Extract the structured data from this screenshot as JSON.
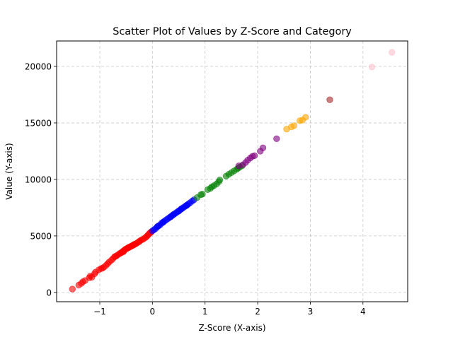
{
  "chart_data": {
    "type": "scatter",
    "title": "Scatter Plot of Values by Z-Score and Category",
    "xlabel": "Z-Score (X-axis)",
    "ylabel": "Value (Y-axis)",
    "xlim": [
      -1.82,
      4.85
    ],
    "ylim": [
      -820,
      22250
    ],
    "xticks": [
      -1,
      0,
      1,
      2,
      3,
      4
    ],
    "xtick_labels": [
      "−1",
      "0",
      "1",
      "2",
      "3",
      "4"
    ],
    "yticks": [
      0,
      5000,
      10000,
      15000,
      20000
    ],
    "ytick_labels": [
      "0",
      "5000",
      "10000",
      "15000",
      "20000"
    ],
    "grid": true,
    "legend": "none",
    "series": [
      {
        "color": "#ff0000",
        "opacity": 0.6,
        "points": [
          [
            -1.52,
            300
          ],
          [
            -1.4,
            650
          ],
          [
            -1.35,
            800
          ],
          [
            -1.32,
            950
          ],
          [
            -1.28,
            1050
          ],
          [
            -1.2,
            1300
          ],
          [
            -1.18,
            1450
          ],
          [
            -1.15,
            1350
          ],
          [
            -1.08,
            1800
          ],
          [
            -1.02,
            2000
          ],
          [
            -0.98,
            2100
          ],
          [
            -0.95,
            2150
          ],
          [
            -0.92,
            2250
          ],
          [
            -0.85,
            2550
          ],
          [
            -0.82,
            2700
          ],
          [
            -0.78,
            2850
          ],
          [
            -0.75,
            3000
          ],
          [
            -0.72,
            3150
          ],
          [
            -0.68,
            3250
          ],
          [
            -0.65,
            3350
          ],
          [
            -0.62,
            3450
          ],
          [
            -0.58,
            3550
          ],
          [
            -0.56,
            3650
          ],
          [
            -0.54,
            3700
          ],
          [
            -0.52,
            3800
          ],
          [
            -0.5,
            3850
          ],
          [
            -0.48,
            3900
          ],
          [
            -0.46,
            3950
          ],
          [
            -0.44,
            4000
          ],
          [
            -0.42,
            4050
          ],
          [
            -0.4,
            4100
          ],
          [
            -0.38,
            4150
          ],
          [
            -0.36,
            4200
          ],
          [
            -0.34,
            4250
          ],
          [
            -0.32,
            4300
          ],
          [
            -0.3,
            4350
          ],
          [
            -0.27,
            4450
          ],
          [
            -0.24,
            4550
          ],
          [
            -0.21,
            4650
          ],
          [
            -0.18,
            4700
          ],
          [
            -0.15,
            4800
          ],
          [
            -0.12,
            4900
          ],
          [
            -0.1,
            5000
          ],
          [
            -0.08,
            5100
          ],
          [
            -0.06,
            5200
          ],
          [
            -0.04,
            5300
          ],
          [
            -0.02,
            5350
          ],
          [
            -0.55,
            3600
          ],
          [
            -0.45,
            4000
          ],
          [
            -0.35,
            4250
          ],
          [
            -0.25,
            4500
          ],
          [
            -0.7,
            3200
          ],
          [
            -0.6,
            3500
          ],
          [
            -1.1,
            1650
          ],
          [
            -0.88,
            2400
          ]
        ]
      },
      {
        "color": "#0000ff",
        "opacity": 0.6,
        "points": [
          [
            0.0,
            5450
          ],
          [
            0.03,
            5550
          ],
          [
            0.06,
            5650
          ],
          [
            0.09,
            5800
          ],
          [
            0.12,
            5900
          ],
          [
            0.15,
            6000
          ],
          [
            0.18,
            6150
          ],
          [
            0.21,
            6250
          ],
          [
            0.24,
            6350
          ],
          [
            0.27,
            6450
          ],
          [
            0.3,
            6550
          ],
          [
            0.33,
            6650
          ],
          [
            0.36,
            6750
          ],
          [
            0.39,
            6850
          ],
          [
            0.42,
            6950
          ],
          [
            0.45,
            7050
          ],
          [
            0.48,
            7150
          ],
          [
            0.51,
            7250
          ],
          [
            0.54,
            7350
          ],
          [
            0.57,
            7450
          ],
          [
            0.6,
            7550
          ],
          [
            0.63,
            7650
          ],
          [
            0.66,
            7750
          ],
          [
            0.69,
            7850
          ],
          [
            0.72,
            7950
          ],
          [
            0.76,
            8100
          ],
          [
            0.79,
            8200
          ],
          [
            0.1,
            5850
          ],
          [
            0.2,
            6200
          ],
          [
            0.35,
            6700
          ],
          [
            0.5,
            7200
          ],
          [
            0.65,
            7700
          ],
          [
            0.4,
            6900
          ],
          [
            0.55,
            7400
          ]
        ]
      },
      {
        "color": "#008000",
        "opacity": 0.6,
        "points": [
          [
            0.85,
            8400
          ],
          [
            0.92,
            8650
          ],
          [
            0.95,
            8700
          ],
          [
            1.05,
            9100
          ],
          [
            1.1,
            9200
          ],
          [
            1.13,
            9350
          ],
          [
            1.17,
            9450
          ],
          [
            1.22,
            9600
          ],
          [
            1.26,
            9800
          ],
          [
            1.28,
            9950
          ],
          [
            1.4,
            10300
          ],
          [
            1.45,
            10450
          ],
          [
            1.5,
            10600
          ],
          [
            1.55,
            10750
          ],
          [
            1.6,
            10900
          ],
          [
            1.63,
            11000
          ],
          [
            1.66,
            11100
          ],
          [
            1.7,
            11200
          ]
        ]
      },
      {
        "color": "#800080",
        "opacity": 0.6,
        "points": [
          [
            1.64,
            11200
          ],
          [
            1.72,
            11300
          ],
          [
            1.77,
            11500
          ],
          [
            1.81,
            11700
          ],
          [
            1.86,
            11900
          ],
          [
            1.9,
            12050
          ],
          [
            1.94,
            12100
          ],
          [
            2.05,
            12500
          ],
          [
            2.1,
            12800
          ],
          [
            2.36,
            13600
          ]
        ]
      },
      {
        "color": "#ffa500",
        "opacity": 0.6,
        "points": [
          [
            2.55,
            14450
          ],
          [
            2.64,
            14650
          ],
          [
            2.69,
            14750
          ],
          [
            2.8,
            15200
          ],
          [
            2.85,
            15250
          ],
          [
            2.91,
            15500
          ]
        ]
      },
      {
        "color": "#a52a2a",
        "opacity": 0.6,
        "points": [
          [
            3.37,
            17050
          ]
        ]
      },
      {
        "color": "#ffc0cb",
        "opacity": 0.6,
        "points": [
          [
            4.17,
            19950
          ],
          [
            4.55,
            21250
          ]
        ]
      }
    ]
  }
}
